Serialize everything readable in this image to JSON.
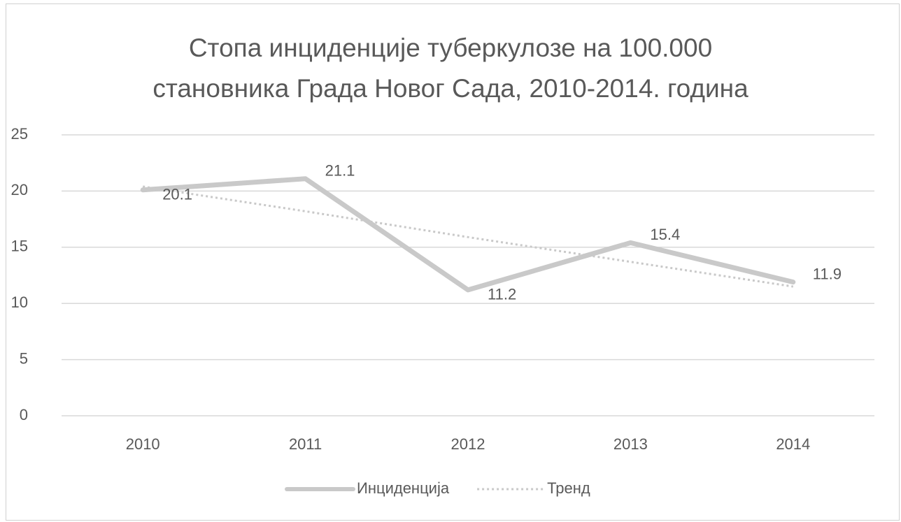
{
  "chart_data": {
    "type": "line",
    "title": "Стопа инциденције туберкулозе на 100.000\nстановника Града Новог Сада, 2010-2014. година",
    "categories": [
      "2010",
      "2011",
      "2012",
      "2013",
      "2014"
    ],
    "series": [
      {
        "name": "Инциденција",
        "color": "#c9c9c9",
        "style": "solid",
        "values": [
          20.1,
          21.1,
          11.2,
          15.4,
          11.9
        ],
        "data_labels": true
      },
      {
        "name": "Тренд",
        "color": "#c9c9c9",
        "style": "dotted",
        "values": [
          20.4,
          18.2,
          15.9,
          13.7,
          11.5
        ]
      }
    ],
    "ylim": [
      0,
      25
    ],
    "yticks": [
      0,
      5,
      10,
      15,
      20,
      25
    ],
    "grid": true,
    "legend": "bottom"
  }
}
